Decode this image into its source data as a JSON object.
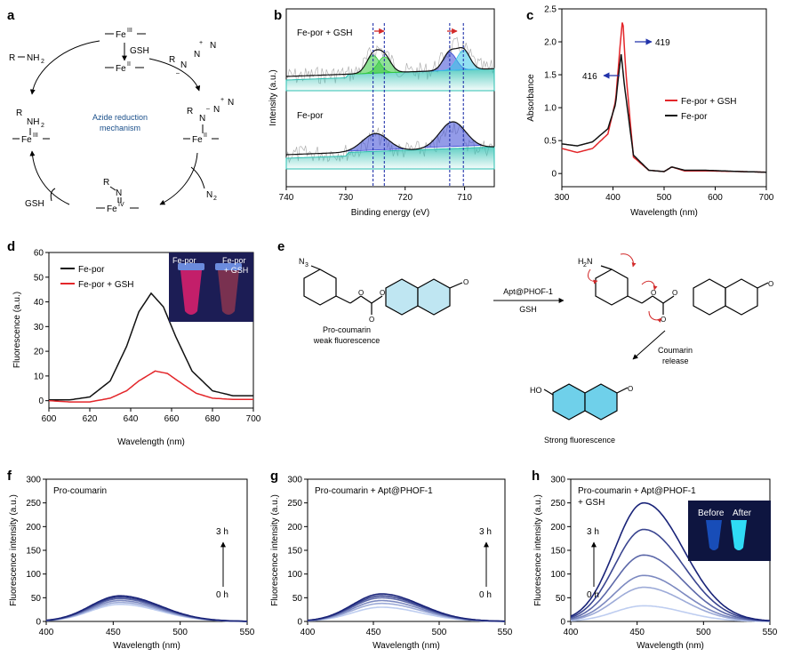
{
  "panels": {
    "a": {
      "label": "a",
      "center": [
        "Azide reduction",
        "mechanism"
      ],
      "feIII_top": "Fe",
      "feIII_top_sup": "III",
      "gsh_top": "GSH",
      "feII_top": "Fe",
      "feII_top_sup": "II",
      "r": "R",
      "nh2": "NH",
      "nh2_sub": "2",
      "azide": "N",
      "plus": "+",
      "minus": "–",
      "feII_right": "Fe",
      "feII_right_sup": "II",
      "n2": "N",
      "n2_sub": "2",
      "feIV": "Fe",
      "feIV_sup": "IV",
      "gsh_bottom": "GSH",
      "feIII_left": "Fe",
      "feIII_left_sup": "III"
    },
    "b": {
      "label": "b",
      "top_trace_label": "Fe-por + GSH",
      "bottom_trace_label": "Fe-por"
    },
    "c": {
      "label": "c",
      "annot_419": "419",
      "annot_416": "416"
    },
    "d": {
      "label": "d",
      "inset_left": "Fe-por",
      "inset_right_1": "Fe-por",
      "inset_right_2": "+ GSH"
    },
    "e": {
      "label": "e",
      "n3": "N",
      "n3_sub": "3",
      "h2n": "H",
      "h2n_sub": "2",
      "h2n_n": "N",
      "reagent_top": "Apt@PHOF-1",
      "reagent_bottom": "GSH",
      "pro_label_1": "Pro-coumarin",
      "pro_label_2": "weak fluorescence",
      "release_1": "Coumarin",
      "release_2": "release",
      "ho": "HO",
      "strong": "Strong fluorescence"
    },
    "f": {
      "label": "f",
      "title": "Pro-coumarin",
      "arrow_top": "3 h",
      "arrow_bottom": "0 h"
    },
    "g": {
      "label": "g",
      "title": "Pro-coumarin + Apt@PHOF-1",
      "arrow_top": "3 h",
      "arrow_bottom": "0 h"
    },
    "h": {
      "label": "h",
      "title_1": "Pro-coumarin + Apt@PHOF-1",
      "title_2": "+ GSH",
      "arrow_top": "3 h",
      "arrow_bottom": "0 h",
      "inset_before": "Before",
      "inset_after": "After"
    }
  },
  "colors": {
    "red": "#e3262a",
    "black": "#111111",
    "xps_teal": "#2bbfb0",
    "xps_green": "#35c940",
    "xps_blue": "#3a49d6",
    "xps_cyan": "#39c7e8",
    "dash_blue": "#2233aa",
    "arrow_red": "#d22a2a",
    "coumarin_fill": "#bfe6f2",
    "mechanism_text": "#1a4f8a"
  },
  "chart_data": [
    {
      "id": "b",
      "type": "line",
      "xlabel": "Binding energy (eV)",
      "ylabel": "Intensity (a.u.)",
      "xlim": [
        740,
        705
      ],
      "x_ticks": [
        740,
        730,
        720,
        710
      ],
      "dashed_lines": [
        725.4,
        723.5,
        712.5,
        710.2
      ],
      "series": [
        {
          "name": "Fe-por + GSH",
          "peaks": [
            [
              725.4,
              1.0
            ],
            [
              723.5,
              0.9
            ],
            [
              712.5,
              1.0
            ],
            [
              710.2,
              1.1
            ]
          ]
        },
        {
          "name": "Fe-por",
          "peaks": [
            [
              725.0,
              1.0
            ],
            [
              712.0,
              1.5
            ]
          ]
        }
      ]
    },
    {
      "id": "c",
      "type": "line",
      "xlabel": "Wavelength (nm)",
      "ylabel": "Absorbance",
      "xlim": [
        300,
        700
      ],
      "ylim": [
        -0.2,
        2.5
      ],
      "x_ticks": [
        300,
        400,
        500,
        600,
        700
      ],
      "y_ticks": [
        0,
        0.5,
        1.0,
        1.5,
        2.0,
        2.5
      ],
      "series": [
        {
          "name": "Fe-por + GSH",
          "peak_x": 419,
          "x": [
            300,
            330,
            360,
            390,
            405,
            413,
            419,
            425,
            440,
            470,
            500,
            515,
            540,
            580,
            650,
            700
          ],
          "y": [
            0.38,
            0.32,
            0.38,
            0.6,
            1.1,
            1.85,
            2.38,
            1.55,
            0.25,
            0.05,
            0.03,
            0.1,
            0.04,
            0.04,
            0.03,
            0.02
          ]
        },
        {
          "name": "Fe-por",
          "peak_x": 416,
          "x": [
            300,
            330,
            360,
            390,
            405,
            411,
            416,
            423,
            440,
            470,
            500,
            515,
            540,
            580,
            650,
            700
          ],
          "y": [
            0.45,
            0.42,
            0.48,
            0.68,
            1.05,
            1.5,
            1.81,
            1.3,
            0.28,
            0.05,
            0.03,
            0.1,
            0.05,
            0.05,
            0.03,
            0.02
          ]
        }
      ]
    },
    {
      "id": "d",
      "type": "line",
      "xlabel": "Wavelength (nm)",
      "ylabel": "Fluorescence (a.u.)",
      "xlim": [
        600,
        700
      ],
      "ylim": [
        -3,
        60
      ],
      "x_ticks": [
        600,
        620,
        640,
        660,
        680,
        700
      ],
      "y_ticks": [
        0,
        10,
        20,
        30,
        40,
        50,
        60
      ],
      "series": [
        {
          "name": "Fe-por",
          "x": [
            600,
            610,
            620,
            630,
            638,
            644,
            650,
            656,
            662,
            670,
            680,
            690,
            700
          ],
          "y": [
            0.3,
            0.3,
            1.5,
            8,
            22,
            36,
            43.5,
            38,
            26,
            12,
            4,
            2,
            2
          ]
        },
        {
          "name": "Fe-por + GSH",
          "x": [
            600,
            610,
            620,
            630,
            638,
            644,
            652,
            658,
            664,
            672,
            680,
            690,
            700
          ],
          "y": [
            0,
            -0.5,
            -0.5,
            1,
            4,
            8,
            12,
            11,
            7.5,
            3,
            1,
            0.5,
            0.5
          ]
        }
      ]
    },
    {
      "id": "f",
      "type": "line",
      "xlabel": "Wavelength (nm)",
      "ylabel": "Fluorescence intensity (a.u.)",
      "xlim": [
        400,
        550
      ],
      "ylim": [
        0,
        300
      ],
      "x_ticks": [
        400,
        450,
        500,
        550
      ],
      "y_ticks": [
        0,
        50,
        100,
        150,
        200,
        250,
        300
      ],
      "series_peaks": [
        36,
        40,
        44,
        48,
        51,
        54
      ],
      "peak_x": 455
    },
    {
      "id": "g",
      "type": "line",
      "xlabel": "Wavelength (nm)",
      "ylabel": "Fluorescence intensity (a.u.)",
      "xlim": [
        400,
        550
      ],
      "ylim": [
        0,
        300
      ],
      "x_ticks": [
        400,
        450,
        500,
        550
      ],
      "y_ticks": [
        0,
        50,
        100,
        150,
        200,
        250,
        300
      ],
      "series_peaks": [
        30,
        38,
        44,
        50,
        54,
        58
      ],
      "peak_x": 456
    },
    {
      "id": "h",
      "type": "line",
      "xlabel": "Wavelength (nm)",
      "ylabel": "Fluorescence intensity (a.u.)",
      "xlim": [
        400,
        550
      ],
      "ylim": [
        0,
        300
      ],
      "x_ticks": [
        400,
        450,
        500,
        550
      ],
      "y_ticks": [
        0,
        50,
        100,
        150,
        200,
        250,
        300
      ],
      "series_peaks": [
        33,
        72,
        97,
        140,
        194,
        250
      ],
      "peak_x": 455
    }
  ]
}
